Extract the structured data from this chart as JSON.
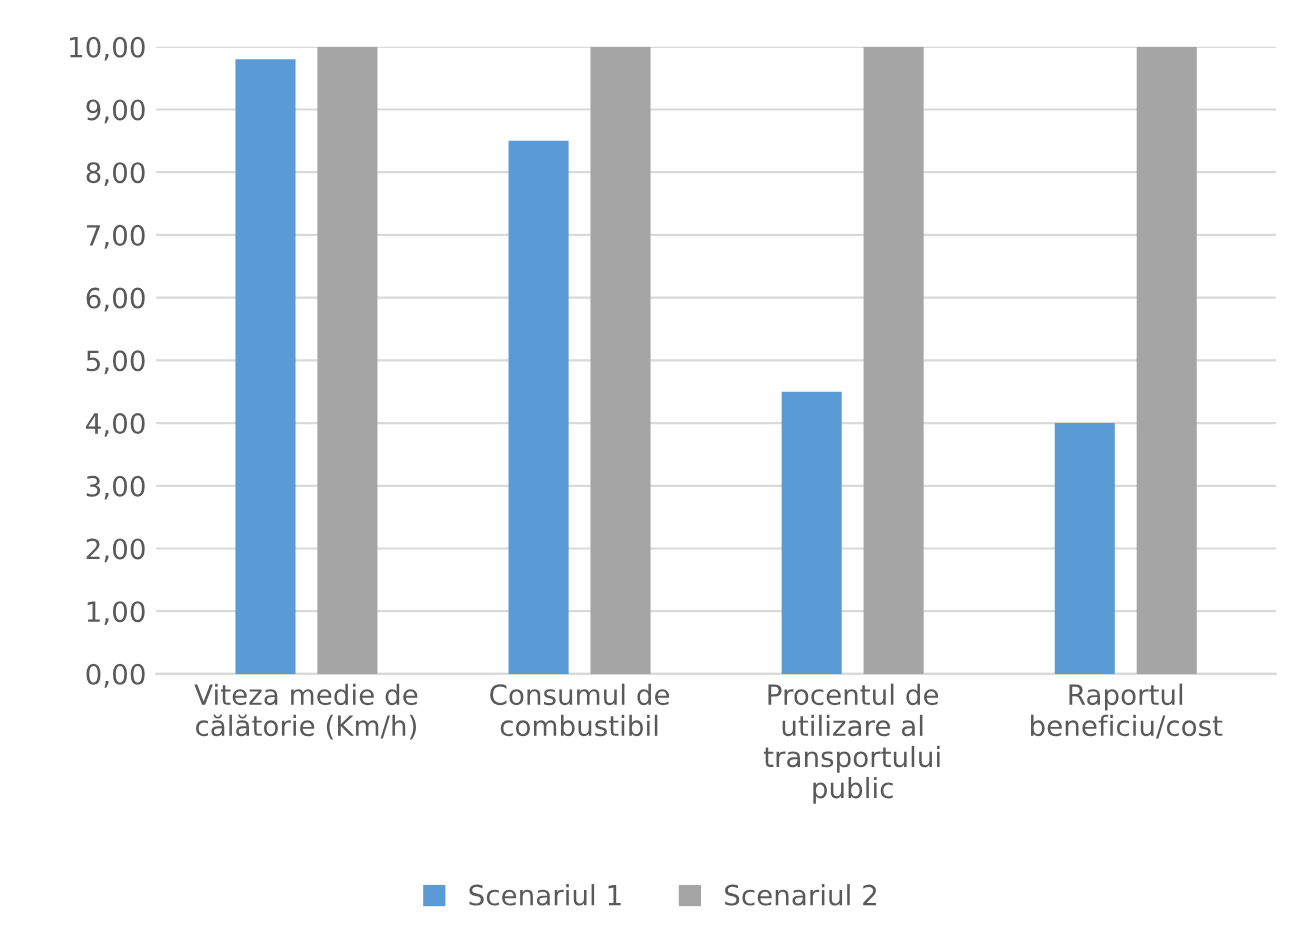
{
  "chart_data": {
    "type": "bar",
    "categories": [
      "Viteza medie de călătorie (Km/h)",
      "Consumul de combustibil",
      "Procentul de utilizare al transportului public",
      "Raportul beneficiu/cost"
    ],
    "series": [
      {
        "name": "Scenariul 1",
        "color": "#5b9bd5",
        "values": [
          9.8,
          8.5,
          4.5,
          4.0
        ]
      },
      {
        "name": "Scenariul 2",
        "color": "#a5a5a5",
        "values": [
          10,
          10,
          10,
          10
        ]
      }
    ],
    "ylim": [
      0,
      10
    ],
    "yticks": [
      {
        "value": 0,
        "label": "0,00"
      },
      {
        "value": 1,
        "label": "1,00"
      },
      {
        "value": 2,
        "label": "2,00"
      },
      {
        "value": 3,
        "label": "3,00"
      },
      {
        "value": 4,
        "label": "4,00"
      },
      {
        "value": 5,
        "label": "5,00"
      },
      {
        "value": 6,
        "label": "6,00"
      },
      {
        "value": 7,
        "label": "7,00"
      },
      {
        "value": 8,
        "label": "8,00"
      },
      {
        "value": 9,
        "label": "9,00"
      },
      {
        "value": 10,
        "label": "10,00"
      }
    ],
    "grid": "y",
    "legend": "bottom"
  }
}
